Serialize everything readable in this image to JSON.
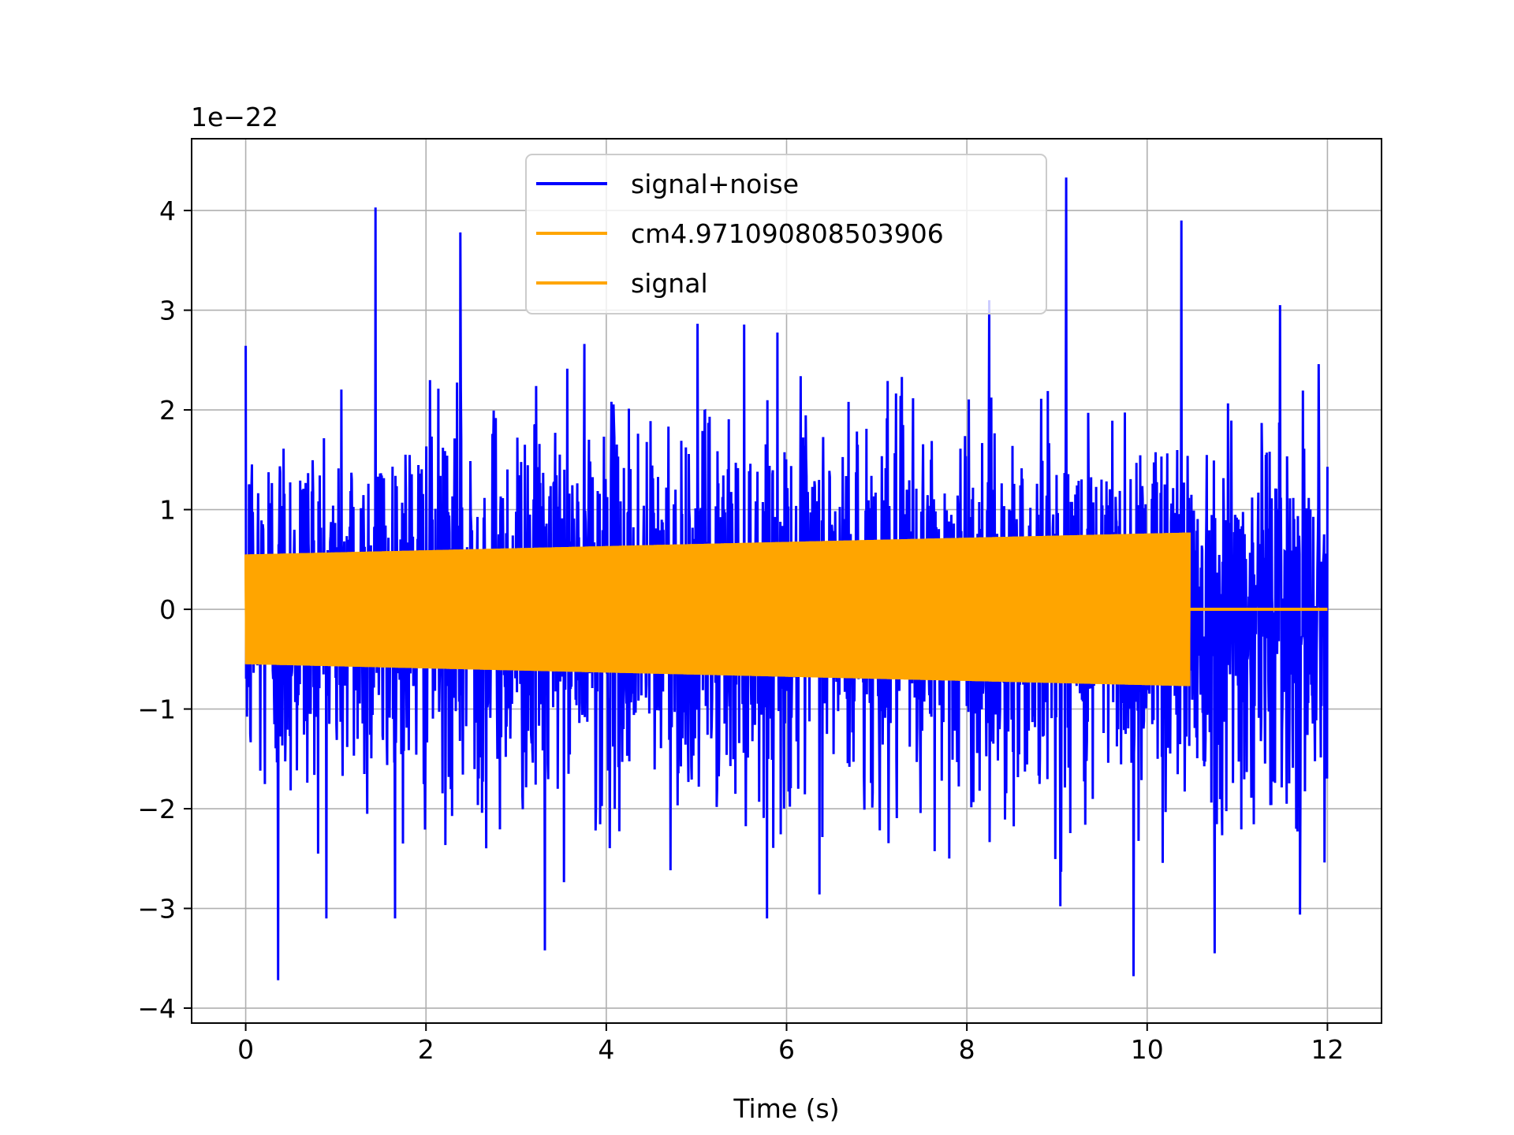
{
  "chart_data": {
    "type": "line",
    "title": "",
    "xlabel": "Time (s)",
    "ylabel": "",
    "y_offset_label": "1e−22",
    "xlim": [
      -0.6,
      12.6
    ],
    "ylim": [
      -4.15,
      4.72
    ],
    "x_ticks": [
      0,
      2,
      4,
      6,
      8,
      10,
      12
    ],
    "x_tick_labels": [
      "0",
      "2",
      "4",
      "6",
      "8",
      "10",
      "12"
    ],
    "y_ticks": [
      -4,
      -3,
      -2,
      -1,
      0,
      1,
      2,
      3,
      4
    ],
    "y_tick_labels": [
      "−4",
      "−3",
      "−2",
      "−1",
      "0",
      "1",
      "2",
      "3",
      "4"
    ],
    "grid": true,
    "legend_position": "top-center",
    "series": [
      {
        "name": "signal+noise",
        "color": "#0000ff",
        "description": "dense noise trace",
        "x_range": [
          0,
          12
        ],
        "typical_envelope": [
          -2.0,
          2.0
        ],
        "peaks": [
          {
            "x": 1.44,
            "y": 4.03
          },
          {
            "x": 2.38,
            "y": 3.78
          },
          {
            "x": 9.1,
            "y": 4.33
          },
          {
            "x": 10.38,
            "y": 3.9
          },
          {
            "x": 0.36,
            "y": -3.72
          },
          {
            "x": 9.85,
            "y": -3.68
          },
          {
            "x": 10.75,
            "y": -3.45
          },
          {
            "x": 3.32,
            "y": -3.42
          }
        ]
      },
      {
        "name": "cm4.971090808503906",
        "color": "#ffa500",
        "x_range": [
          0,
          10.47
        ],
        "amplitude_start": 0.55,
        "amplitude_end": 0.77
      },
      {
        "name": "signal",
        "color": "#ffa500",
        "x_range": [
          0,
          12
        ],
        "amplitude_start": 0.55,
        "amplitude_end": 0.77,
        "cutoff_x": 10.47,
        "after_cutoff_value": 0
      }
    ]
  }
}
